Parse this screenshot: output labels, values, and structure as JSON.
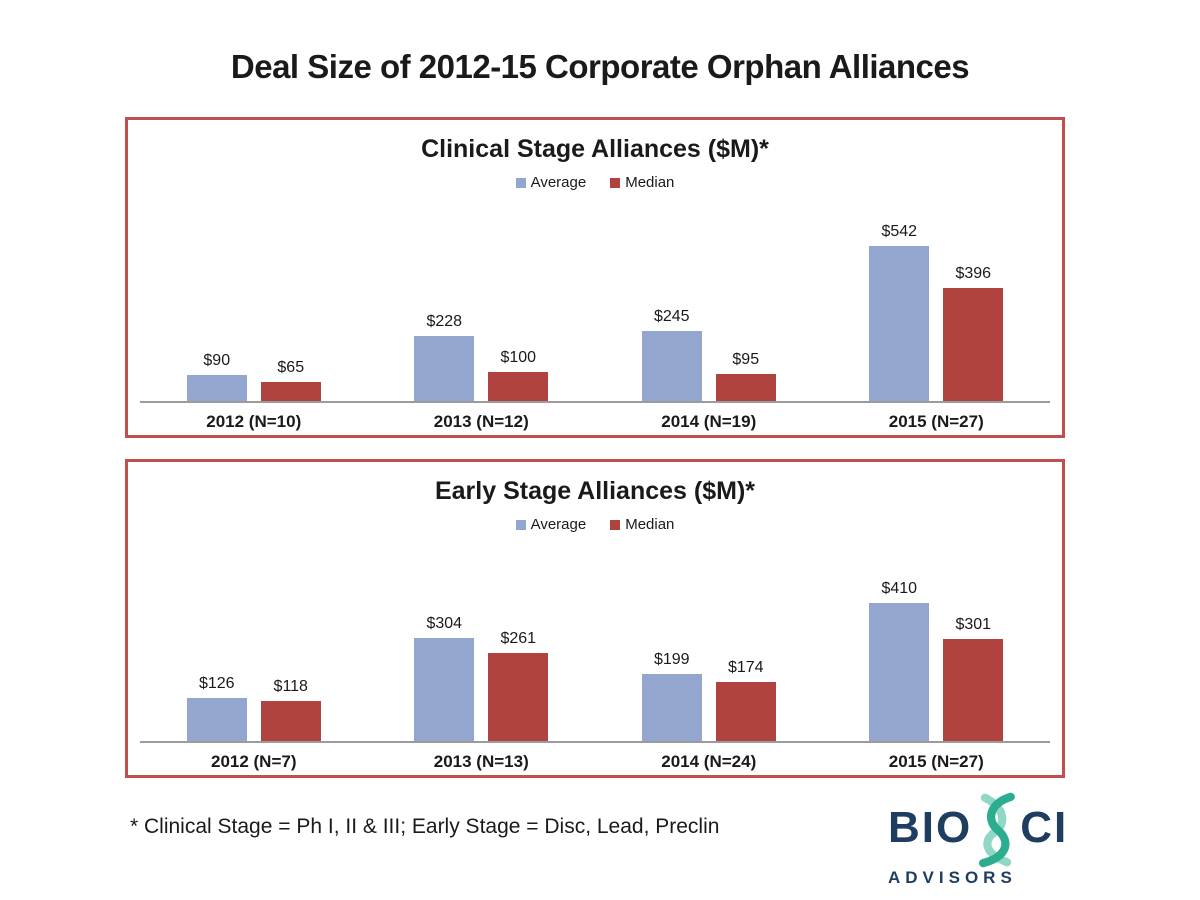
{
  "page": {
    "title": "Deal Size of 2012-15 Corporate Orphan Alliances",
    "footnote": "* Clinical Stage = Ph I, II & III; Early Stage = Disc, Lead, Preclin"
  },
  "colors": {
    "average": "#93A6CF",
    "median": "#B04240",
    "panel_border": "#C0504D",
    "axis_line": "#9B9B9B",
    "logo_navy": "#1E3D5F",
    "logo_teal": "#2AAE8F",
    "logo_teal_light": "#90D8C3"
  },
  "logo": {
    "text_left": "BIO",
    "text_right": "CI",
    "subtext": "ADVISORS",
    "icon": "dna-helix-icon"
  },
  "chart_data": [
    {
      "type": "bar",
      "title": "Clinical Stage Alliances ($M)*",
      "categories": [
        "2012 (N=10)",
        "2013 (N=12)",
        "2014 (N=19)",
        "2015 (N=27)"
      ],
      "series": [
        {
          "name": "Average",
          "values": [
            90,
            228,
            245,
            542
          ]
        },
        {
          "name": "Median",
          "values": [
            65,
            100,
            95,
            396
          ]
        }
      ],
      "value_prefix": "$",
      "ylim": [
        0,
        600
      ],
      "xlabel": "",
      "ylabel": "",
      "grid": false,
      "legend_position": "top",
      "data_labels": true
    },
    {
      "type": "bar",
      "title": "Early Stage Alliances ($M)*",
      "categories": [
        "2012 (N=7)",
        "2013 (N=13)",
        "2014 (N=24)",
        "2015 (N=27)"
      ],
      "series": [
        {
          "name": "Average",
          "values": [
            126,
            304,
            199,
            410
          ]
        },
        {
          "name": "Median",
          "values": [
            118,
            261,
            174,
            301
          ]
        }
      ],
      "value_prefix": "$",
      "ylim": [
        0,
        450
      ],
      "xlabel": "",
      "ylabel": "",
      "grid": false,
      "legend_position": "top",
      "data_labels": true
    }
  ]
}
